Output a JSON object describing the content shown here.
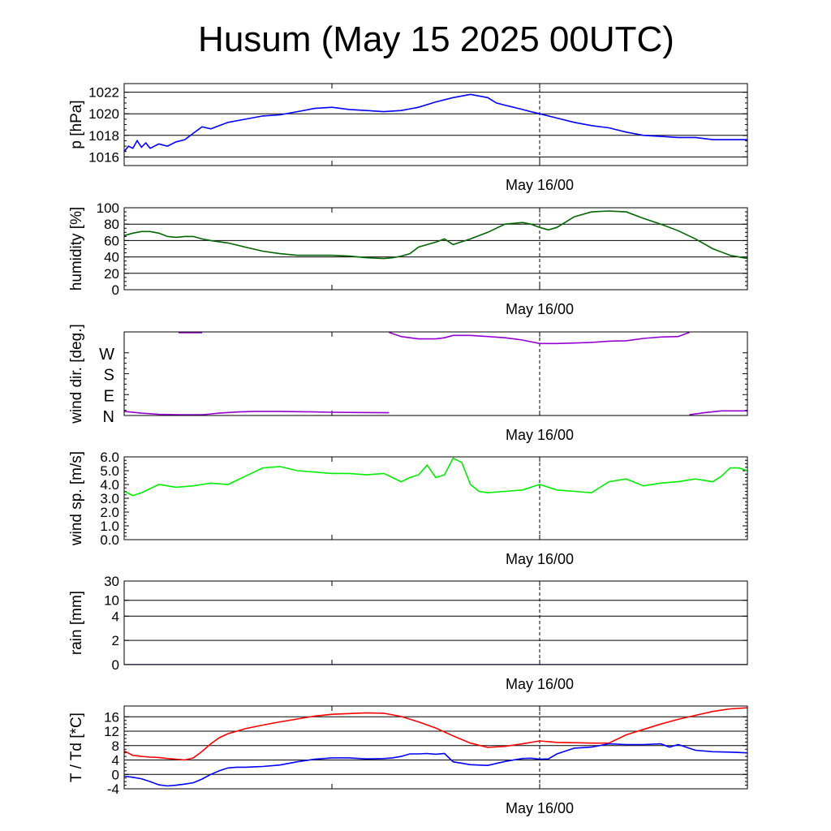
{
  "title": "Husum (May 15 2025 00UTC)",
  "colors": {
    "pressure": "#0000ff",
    "humidity": "#006400",
    "wind_dir": "#9400d3",
    "wind_speed": "#00ee00",
    "rain": "#000080",
    "temperature": "#ff0000",
    "dewpoint": "#0000ff"
  },
  "chart_data": [
    {
      "type": "line",
      "ylabel": "p [hPa]",
      "xlabel": "May 16/00",
      "x_range_hours": [
        0,
        72
      ],
      "ylim": [
        1015.2,
        1022.8
      ],
      "ticks": [
        1016,
        1018,
        1020,
        1022
      ],
      "tick_labels": [
        "1016",
        "1018",
        "1020",
        "1022"
      ],
      "grid": true,
      "series": [
        {
          "color": "pressure",
          "x": [
            0,
            0.5,
            1,
            1.5,
            2,
            2.5,
            3,
            4,
            5,
            6,
            7,
            8,
            9,
            10,
            12,
            14,
            16,
            18,
            20,
            22,
            24,
            26,
            28,
            30,
            32,
            34,
            36,
            38,
            40,
            42,
            43,
            44,
            45,
            46,
            47,
            48,
            50,
            52,
            54,
            56,
            58,
            60,
            62,
            64,
            66,
            68,
            70,
            72
          ],
          "y": [
            1016.5,
            1017.0,
            1016.8,
            1017.5,
            1016.9,
            1017.3,
            1016.8,
            1017.2,
            1017.0,
            1017.4,
            1017.6,
            1018.2,
            1018.8,
            1018.6,
            1019.2,
            1019.5,
            1019.8,
            1019.9,
            1020.2,
            1020.5,
            1020.6,
            1020.4,
            1020.3,
            1020.2,
            1020.3,
            1020.6,
            1021.1,
            1021.5,
            1021.8,
            1021.5,
            1021.0,
            1020.8,
            1020.6,
            1020.4,
            1020.2,
            1020.0,
            1019.6,
            1019.2,
            1018.9,
            1018.7,
            1018.3,
            1018.0,
            1017.9,
            1017.8,
            1017.8,
            1017.6,
            1017.6,
            1017.6
          ]
        }
      ]
    },
    {
      "type": "line",
      "ylabel": "humidity [%]",
      "xlabel": "May 16/00",
      "x_range_hours": [
        0,
        72
      ],
      "ylim": [
        0,
        100
      ],
      "ticks": [
        0,
        20,
        40,
        60,
        80,
        100
      ],
      "tick_labels": [
        "0",
        "20",
        "40",
        "60",
        "80",
        "100"
      ],
      "grid": true,
      "series": [
        {
          "color": "humidity",
          "x": [
            0,
            1,
            2,
            3,
            4,
            5,
            6,
            7,
            8,
            9,
            10,
            12,
            14,
            16,
            18,
            20,
            22,
            24,
            26,
            28,
            30,
            31,
            32,
            33,
            34,
            35,
            36,
            37,
            38,
            40,
            42,
            44,
            46,
            47,
            48,
            49,
            50,
            52,
            54,
            56,
            58,
            60,
            62,
            64,
            66,
            68,
            70,
            72
          ],
          "y": [
            66,
            69,
            71,
            71,
            69,
            65,
            64,
            65,
            65,
            62,
            60,
            57,
            52,
            47,
            44,
            42,
            42,
            42,
            41,
            39,
            38,
            39,
            41,
            44,
            52,
            55,
            58,
            62,
            55,
            62,
            70,
            80,
            82,
            80,
            76,
            73,
            76,
            89,
            95,
            96,
            95,
            87,
            80,
            72,
            62,
            50,
            42,
            38
          ]
        }
      ]
    },
    {
      "type": "scatter",
      "ylabel": "wind dir. [deg.]",
      "xlabel": "May 16/00",
      "x_range_hours": [
        0,
        72
      ],
      "ylim": [
        0,
        360
      ],
      "ticks": [
        0,
        90,
        180,
        270
      ],
      "tick_labels": [
        "N",
        "E",
        "S",
        "W"
      ],
      "grid": false,
      "series": [
        {
          "color": "wind_dir",
          "x": [
            0,
            2,
            4,
            6.3,
            9,
            11,
            13,
            15,
            18,
            21,
            24,
            27,
            30.6
          ],
          "y": [
            18,
            10,
            5,
            3,
            3,
            10,
            15,
            18,
            18,
            16,
            14,
            13,
            12
          ]
        },
        {
          "color": "wind_dir",
          "x": [
            6.3,
            9
          ],
          "y": [
            357,
            357
          ]
        },
        {
          "color": "wind_dir",
          "x": [
            30.6,
            32,
            34,
            36,
            37,
            38,
            40,
            42,
            44,
            46,
            48,
            50,
            52,
            54,
            56,
            58,
            60,
            62,
            64,
            65.3
          ],
          "y": [
            358,
            340,
            330,
            330,
            335,
            345,
            345,
            340,
            335,
            325,
            310,
            310,
            312,
            315,
            320,
            322,
            332,
            338,
            340,
            358
          ]
        },
        {
          "color": "wind_dir",
          "x": [
            65.3,
            67,
            69,
            70,
            72
          ],
          "y": [
            3,
            12,
            20,
            20,
            20
          ]
        }
      ]
    },
    {
      "type": "line",
      "ylabel": "wind sp. [m/s]",
      "xlabel": "May 16/00",
      "x_range_hours": [
        0,
        72
      ],
      "ylim": [
        0,
        6
      ],
      "ticks": [
        0,
        1,
        2,
        3,
        4,
        5,
        6
      ],
      "tick_labels": [
        "0.0",
        "1.0",
        "2.0",
        "3.0",
        "4.0",
        "5.0",
        "6.0"
      ],
      "grid": false,
      "series": [
        {
          "color": "wind_speed",
          "x": [
            0,
            1,
            2,
            4,
            6,
            8,
            10,
            12,
            14,
            16,
            18,
            20,
            22,
            24,
            26,
            28,
            30,
            32,
            33,
            34,
            35,
            36,
            37,
            38,
            39,
            40,
            41,
            42,
            44,
            46,
            48,
            50,
            52,
            54,
            56,
            58,
            60,
            62,
            64,
            66,
            68,
            69,
            70,
            71,
            72
          ],
          "y": [
            3.5,
            3.2,
            3.4,
            4.0,
            3.8,
            3.9,
            4.1,
            4.0,
            4.6,
            5.2,
            5.3,
            5.0,
            4.9,
            4.8,
            4.8,
            4.7,
            4.8,
            4.2,
            4.5,
            4.7,
            5.4,
            4.5,
            4.7,
            5.9,
            5.6,
            4.0,
            3.5,
            3.4,
            3.5,
            3.6,
            4.0,
            3.6,
            3.5,
            3.4,
            4.2,
            4.4,
            3.9,
            4.1,
            4.2,
            4.4,
            4.2,
            4.6,
            5.2,
            5.2,
            5.0
          ]
        }
      ]
    },
    {
      "type": "line",
      "ylabel": "rain [mm]",
      "xlabel": "May 16/00",
      "x_range_hours": [
        0,
        72
      ],
      "ylim": [
        0,
        30
      ],
      "ticks": [
        0,
        2,
        4,
        10,
        30
      ],
      "tick_labels": [
        "0",
        "2",
        "4",
        "10",
        "30"
      ],
      "grid": true,
      "series": [
        {
          "color": "rain",
          "x": [
            0,
            72
          ],
          "y": [
            0,
            0
          ]
        }
      ]
    },
    {
      "type": "line",
      "ylabel": "T / Td [*C]",
      "xlabel": "May 16/00",
      "x_range_hours": [
        0,
        72
      ],
      "ylim": [
        -4,
        19
      ],
      "ticks": [
        -4,
        0,
        4,
        8,
        12,
        16
      ],
      "tick_labels": [
        "-4",
        "0",
        "4",
        "8",
        "12",
        "16"
      ],
      "grid": true,
      "series": [
        {
          "color": "temperature",
          "x": [
            0,
            1,
            2,
            3,
            4,
            5,
            6,
            7,
            8,
            9,
            10,
            11,
            12,
            13,
            14,
            16,
            18,
            20,
            22,
            24,
            26,
            28,
            30,
            32,
            34,
            36,
            38,
            40,
            42,
            44,
            46,
            48,
            50,
            52,
            54,
            56,
            58,
            60,
            62,
            64,
            66,
            68,
            70,
            72
          ],
          "y": [
            6.5,
            5.3,
            5.0,
            4.8,
            4.7,
            4.4,
            4.2,
            4.0,
            4.6,
            6.4,
            8.5,
            10.2,
            11.3,
            12.0,
            12.7,
            13.7,
            14.6,
            15.4,
            16.2,
            16.7,
            16.9,
            17.1,
            17.0,
            16.1,
            14.6,
            12.9,
            10.7,
            8.7,
            7.5,
            7.8,
            8.5,
            9.3,
            8.9,
            8.8,
            8.7,
            8.7,
            11.0,
            12.5,
            14.0,
            15.3,
            16.4,
            17.5,
            18.2,
            18.5
          ]
        },
        {
          "color": "dewpoint",
          "x": [
            0,
            1,
            2,
            3,
            4,
            5,
            6,
            7,
            8,
            9,
            10,
            11,
            12,
            13,
            14,
            15,
            16,
            18,
            20,
            22,
            24,
            26,
            28,
            30,
            31,
            32,
            33,
            34,
            35,
            36,
            37,
            38,
            40,
            42,
            44,
            46,
            47,
            48,
            49,
            50,
            52,
            54,
            56,
            58,
            60,
            62,
            63,
            64,
            66,
            68,
            70,
            72
          ],
          "y": [
            -0.5,
            -0.8,
            -1.2,
            -2.0,
            -2.9,
            -3.2,
            -3.0,
            -2.7,
            -2.3,
            -1.3,
            0.0,
            1.0,
            1.8,
            2.0,
            2.0,
            2.1,
            2.2,
            2.6,
            3.5,
            4.2,
            4.6,
            4.6,
            4.3,
            4.4,
            4.6,
            5.0,
            5.7,
            5.7,
            5.8,
            5.6,
            5.8,
            3.5,
            2.7,
            2.5,
            3.6,
            4.4,
            4.5,
            4.2,
            4.3,
            5.7,
            7.3,
            7.6,
            8.5,
            8.3,
            8.3,
            8.5,
            7.6,
            8.3,
            6.7,
            6.3,
            6.2,
            6.0
          ]
        }
      ]
    }
  ]
}
